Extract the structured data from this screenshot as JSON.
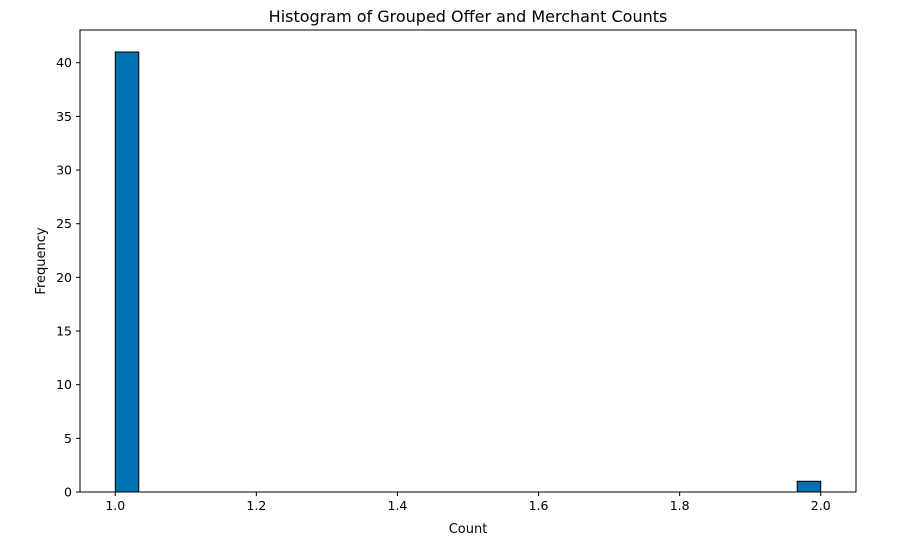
{
  "chart_data": {
    "type": "bar",
    "title": "Histogram of Grouped Offer and Merchant Counts",
    "xlabel": "Count",
    "ylabel": "Frequency",
    "bar_color": "#0072b2",
    "edge_color": "#000000",
    "xlim": [
      0.95,
      2.05
    ],
    "ylim": [
      0,
      43.05
    ],
    "x_ticks": [
      1.0,
      1.2,
      1.4,
      1.6,
      1.8,
      2.0
    ],
    "x_tick_labels": [
      "1.0",
      "1.2",
      "1.4",
      "1.6",
      "1.8",
      "2.0"
    ],
    "y_ticks": [
      0,
      5,
      10,
      15,
      20,
      25,
      30,
      35,
      40
    ],
    "y_tick_labels": [
      "0",
      "5",
      "10",
      "15",
      "20",
      "25",
      "30",
      "35",
      "40"
    ],
    "grid": false,
    "bins": [
      {
        "x_start": 1.0,
        "x_end": 1.0333,
        "value": 41
      },
      {
        "x_start": 1.9667,
        "x_end": 2.0,
        "value": 1
      }
    ]
  }
}
